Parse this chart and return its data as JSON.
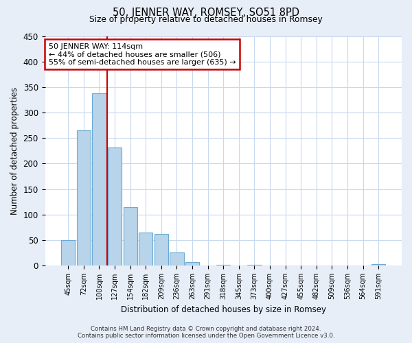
{
  "title": "50, JENNER WAY, ROMSEY, SO51 8PD",
  "subtitle": "Size of property relative to detached houses in Romsey",
  "xlabel": "Distribution of detached houses by size in Romsey",
  "ylabel": "Number of detached properties",
  "bar_labels": [
    "45sqm",
    "72sqm",
    "100sqm",
    "127sqm",
    "154sqm",
    "182sqm",
    "209sqm",
    "236sqm",
    "263sqm",
    "291sqm",
    "318sqm",
    "345sqm",
    "373sqm",
    "400sqm",
    "427sqm",
    "455sqm",
    "482sqm",
    "509sqm",
    "536sqm",
    "564sqm",
    "591sqm"
  ],
  "bar_values": [
    50,
    265,
    338,
    232,
    115,
    65,
    62,
    25,
    7,
    0,
    2,
    0,
    2,
    0,
    0,
    0,
    0,
    0,
    0,
    0,
    3
  ],
  "bar_color": "#b8d4ea",
  "bar_edge_color": "#6aaad4",
  "vline_color": "#cc0000",
  "ylim": [
    0,
    450
  ],
  "yticks": [
    0,
    50,
    100,
    150,
    200,
    250,
    300,
    350,
    400,
    450
  ],
  "annotation_line1": "50 JENNER WAY: 114sqm",
  "annotation_line2": "← 44% of detached houses are smaller (506)",
  "annotation_line3": "55% of semi-detached houses are larger (635) →",
  "annotation_box_color": "#ffffff",
  "annotation_box_edge_color": "#cc0000",
  "background_color": "#e8eef8",
  "plot_bg_color": "#ffffff",
  "grid_color": "#c8d8ee",
  "footer_line1": "Contains HM Land Registry data © Crown copyright and database right 2024.",
  "footer_line2": "Contains public sector information licensed under the Open Government Licence v3.0."
}
